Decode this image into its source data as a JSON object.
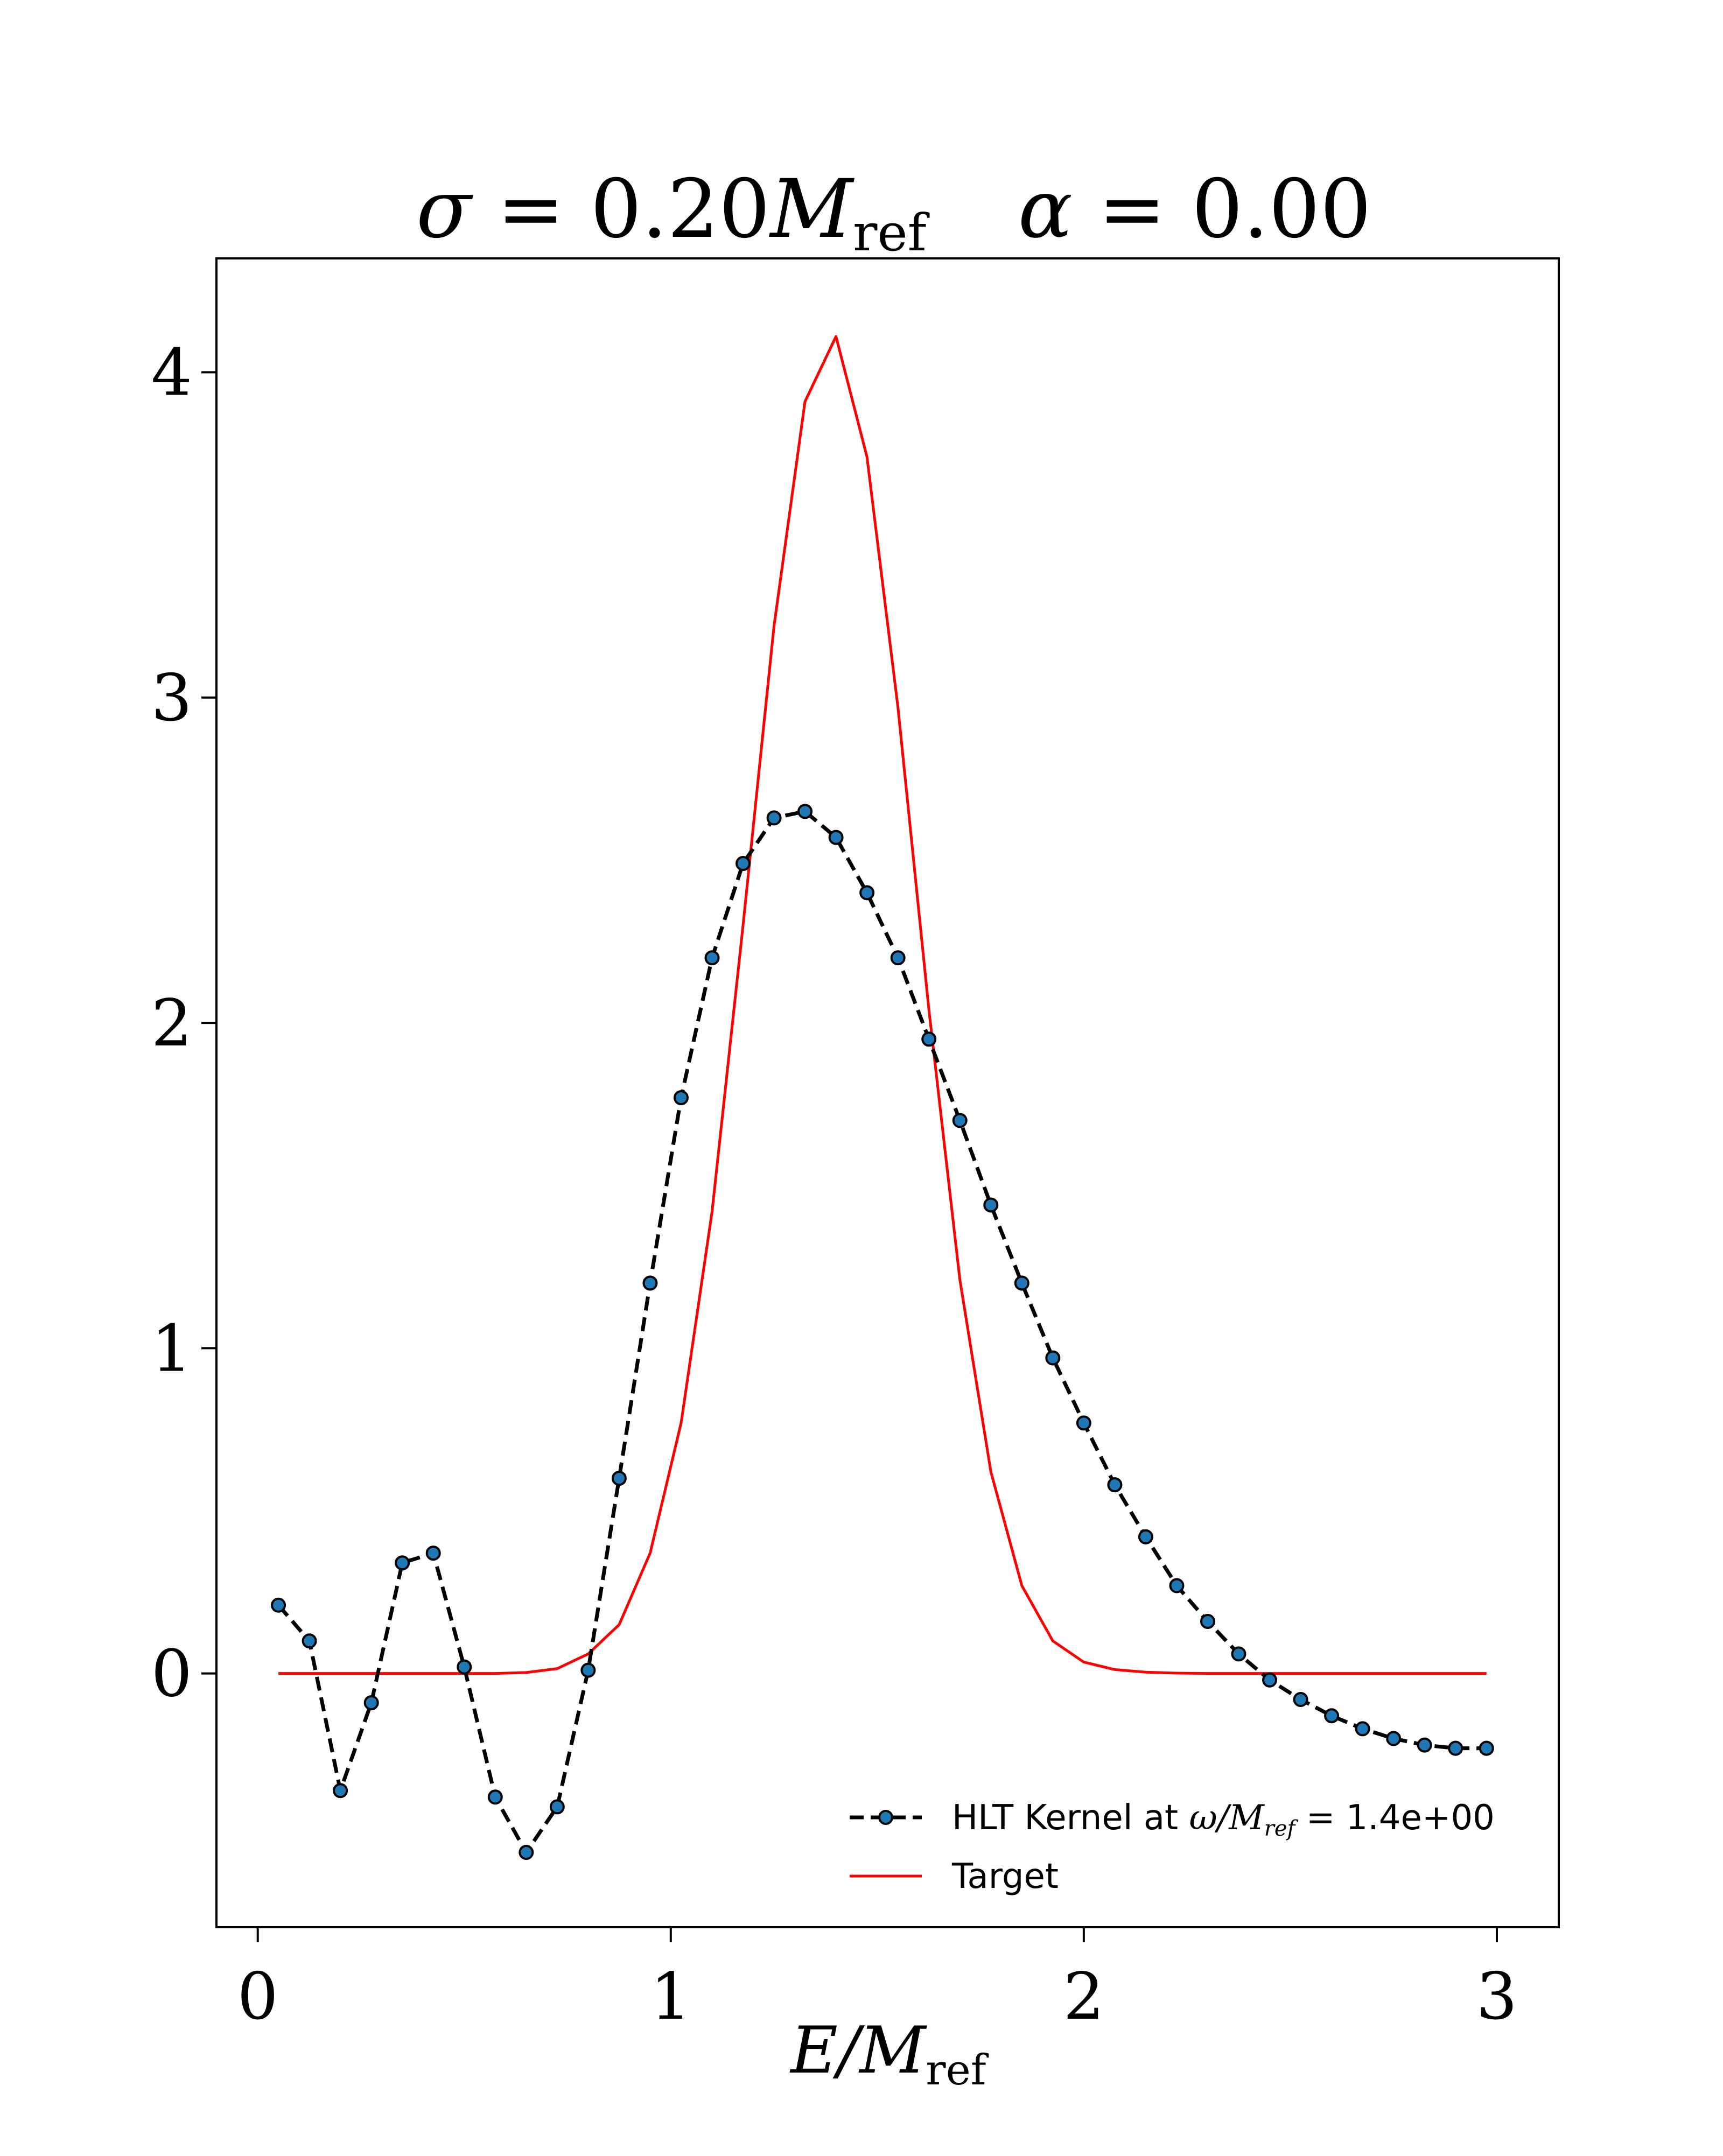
{
  "chart_data": {
    "type": "line",
    "title": {
      "sigma_symbol": "σ",
      "sigma_value": " = 0.20",
      "alpha_symbol": "α",
      "alpha_value": " = 0.00",
      "unit_main": "M",
      "unit_sub": "ref"
    },
    "xlabel": {
      "main": "E/M",
      "sub": "ref"
    },
    "ylabel": "",
    "xlim": [
      -0.1,
      3.15
    ],
    "ylim": [
      -0.78,
      4.35
    ],
    "xticks": [
      0,
      1,
      2,
      3
    ],
    "xtick_labels": [
      "0",
      "1",
      "2",
      "3"
    ],
    "yticks": [
      0,
      1,
      2,
      3,
      4
    ],
    "ytick_labels": [
      "0",
      "1",
      "2",
      "3",
      "4"
    ],
    "grid": false,
    "legend_position": "lower-right",
    "series": [
      {
        "name": "HLT Kernel at ω/M_ref = 1.4e+00",
        "color": "#000000",
        "marker_color": "#1f77b4",
        "style": "dashed-with-markers",
        "x": [
          0.05,
          0.125,
          0.2,
          0.275,
          0.35,
          0.425,
          0.5,
          0.575,
          0.65,
          0.725,
          0.8,
          0.875,
          0.95,
          1.025,
          1.1,
          1.175,
          1.25,
          1.325,
          1.4,
          1.475,
          1.55,
          1.625,
          1.7,
          1.775,
          1.85,
          1.925,
          2.0,
          2.075,
          2.15,
          2.225,
          2.3,
          2.375,
          2.45,
          2.525,
          2.6,
          2.675,
          2.75,
          2.825,
          2.9,
          2.975
        ],
        "y": [
          0.21,
          0.1,
          -0.36,
          -0.09,
          0.34,
          0.37,
          0.02,
          -0.38,
          -0.55,
          -0.41,
          0.01,
          0.6,
          1.2,
          1.77,
          2.2,
          2.49,
          2.63,
          2.65,
          2.57,
          2.4,
          2.2,
          1.95,
          1.7,
          1.44,
          1.2,
          0.97,
          0.77,
          0.58,
          0.42,
          0.27,
          0.16,
          0.06,
          -0.02,
          -0.08,
          -0.13,
          -0.17,
          -0.2,
          -0.22,
          -0.23,
          -0.23
        ]
      },
      {
        "name": "Target",
        "color": "#ff0000",
        "style": "solid",
        "x": [
          0.05,
          0.125,
          0.2,
          0.275,
          0.35,
          0.425,
          0.5,
          0.575,
          0.65,
          0.725,
          0.8,
          0.875,
          0.95,
          1.025,
          1.1,
          1.175,
          1.25,
          1.325,
          1.4,
          1.475,
          1.55,
          1.625,
          1.7,
          1.775,
          1.85,
          1.925,
          2.0,
          2.075,
          2.15,
          2.225,
          2.3,
          2.375,
          2.45,
          2.525,
          2.6,
          2.675,
          2.75,
          2.825,
          2.9,
          2.975
        ],
        "y": [
          0,
          0,
          0,
          0,
          0,
          0,
          0,
          0,
          0.003,
          0.015,
          0.06,
          0.15,
          0.37,
          0.77,
          1.42,
          2.3,
          3.22,
          3.91,
          4.11,
          3.74,
          2.97,
          2.04,
          1.21,
          0.62,
          0.27,
          0.1,
          0.035,
          0.012,
          0.004,
          0.001,
          0,
          0,
          0,
          0,
          0,
          0,
          0,
          0,
          0,
          0
        ]
      }
    ],
    "legend": {
      "kernel_prefix": "HLT Kernel at ",
      "kernel_math": "ω/M",
      "kernel_sub": "ref",
      "kernel_suffix": " = 1.4e+00",
      "target": "Target"
    }
  }
}
